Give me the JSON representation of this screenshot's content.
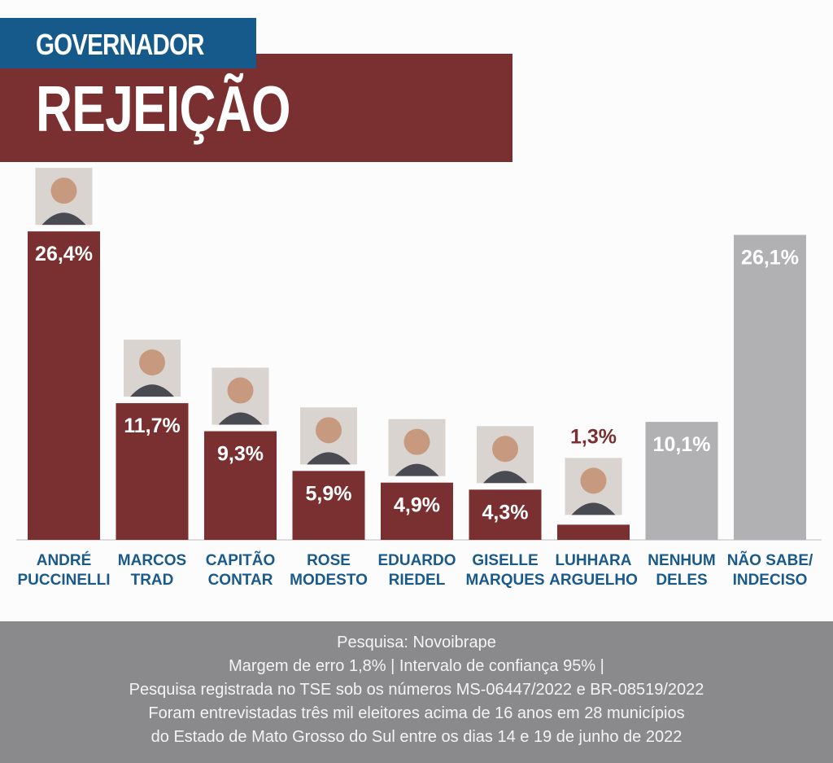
{
  "header": {
    "category": "GOVERNADOR",
    "title": "REJEIÇÃO"
  },
  "colors": {
    "candidate_bar": "#7a3030",
    "other_bar": "#b1b1b4",
    "header_blue": "#155a8a",
    "footer_bg": "#8a8a8c"
  },
  "chart_data": {
    "type": "bar",
    "categories": [
      [
        "ANDRÉ",
        "PUCCINELLI"
      ],
      [
        "MARCOS",
        "TRAD"
      ],
      [
        "CAPITÃO",
        "CONTAR"
      ],
      [
        "ROSE",
        "MODESTO"
      ],
      [
        "EDUARDO",
        "RIEDEL"
      ],
      [
        "GISELLE",
        "MARQUES"
      ],
      [
        "LUHHARA",
        "ARGUELHO"
      ],
      [
        "NENHUM",
        "DELES"
      ],
      [
        "NÃO SABE/",
        "INDECISO"
      ]
    ],
    "values": [
      26.4,
      11.7,
      9.3,
      5.9,
      4.9,
      4.3,
      1.3,
      10.1,
      26.1
    ],
    "labels": [
      "26,4%",
      "11,7%",
      "9,3%",
      "5,9%",
      "4,9%",
      "4,3%",
      "1,3%",
      "10,1%",
      "26,1%"
    ],
    "bar_kind": [
      "candidate",
      "candidate",
      "candidate",
      "candidate",
      "candidate",
      "candidate",
      "candidate",
      "other",
      "other"
    ],
    "has_photo": [
      true,
      true,
      true,
      true,
      true,
      true,
      true,
      false,
      false
    ],
    "photo_icons": [
      "candidate-photo-andre-puccinelli",
      "candidate-photo-marcos-trad",
      "candidate-photo-capitao-contar",
      "candidate-photo-rose-modesto",
      "candidate-photo-eduardo-riedel",
      "candidate-photo-giselle-marques",
      "candidate-photo-luhhara-arguelho"
    ],
    "title": "REJEIÇÃO",
    "xlabel": "",
    "ylabel": "",
    "grid": false,
    "legend": "none"
  },
  "footer": {
    "line1": "Pesquisa: Novoibrape",
    "line2": "Margem de erro 1,8% | Intervalo de confiança 95% |",
    "line3": "Pesquisa registrada no TSE sob os números MS-06447/2022 e BR-08519/2022",
    "line4": "Foram entrevistadas três mil eleitores acima de 16 anos em 28 municípios",
    "line5": "do Estado de Mato Grosso do Sul entre os dias 14 e 19 de junho de 2022"
  }
}
